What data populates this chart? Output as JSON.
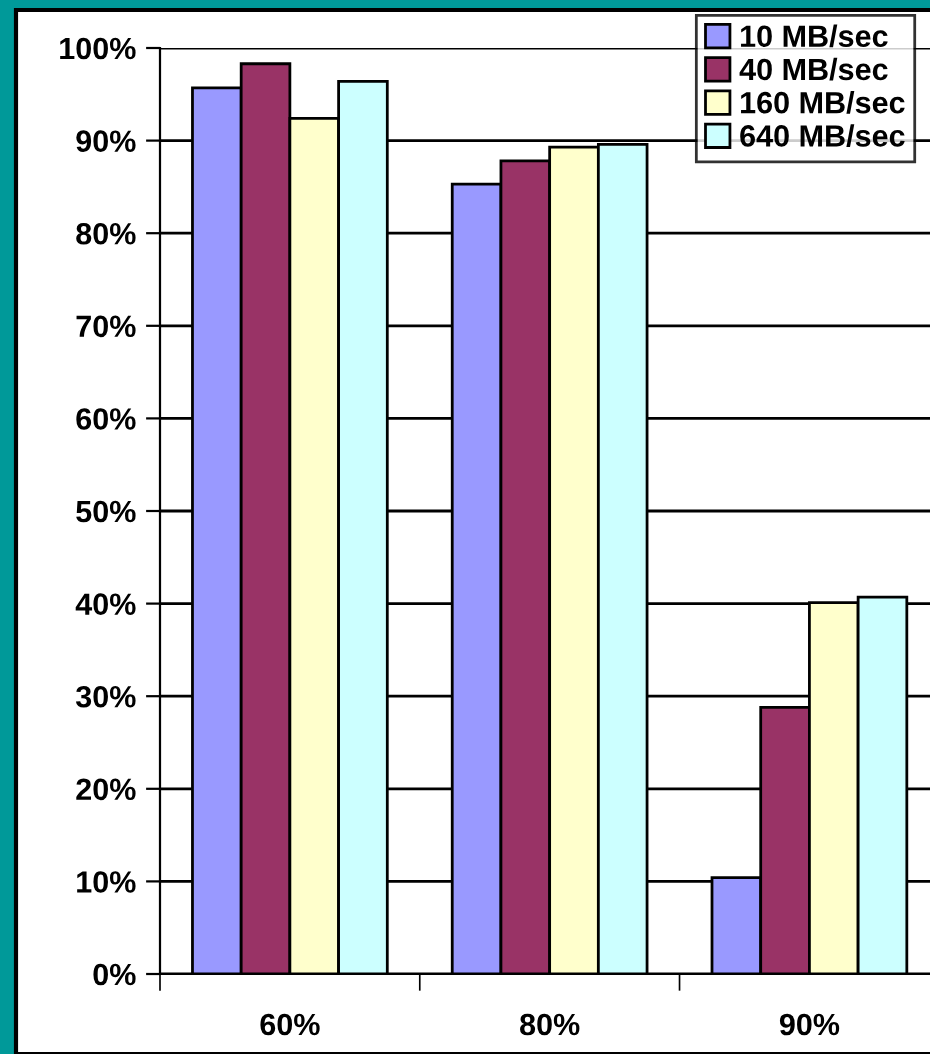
{
  "chart_data": {
    "type": "bar",
    "categories": [
      "60%",
      "80%",
      "90%"
    ],
    "series": [
      {
        "name": "10 MB/sec",
        "color": "#9999ff",
        "values": [
          95.7,
          85.3,
          10.4
        ]
      },
      {
        "name": "40 MB/sec",
        "color": "#993366",
        "values": [
          98.3,
          87.8,
          28.8
        ]
      },
      {
        "name": "160 MB/sec",
        "color": "#ffffcc",
        "values": [
          92.4,
          89.3,
          40.1
        ]
      },
      {
        "name": "640 MB/sec",
        "color": "#ccffff",
        "values": [
          96.4,
          89.6,
          40.7
        ]
      }
    ],
    "ylim": [
      0,
      100
    ],
    "yticks": [
      {
        "value": 0,
        "label": "0%"
      },
      {
        "value": 10,
        "label": "10%"
      },
      {
        "value": 20,
        "label": "20%"
      },
      {
        "value": 30,
        "label": "30%"
      },
      {
        "value": 40,
        "label": "40%"
      },
      {
        "value": 50,
        "label": "50%"
      },
      {
        "value": 60,
        "label": "60%"
      },
      {
        "value": 70,
        "label": "70%"
      },
      {
        "value": 80,
        "label": "80%"
      },
      {
        "value": 90,
        "label": "90%"
      },
      {
        "value": 100,
        "label": "100%"
      }
    ],
    "grid": "y",
    "legend": "top right"
  }
}
